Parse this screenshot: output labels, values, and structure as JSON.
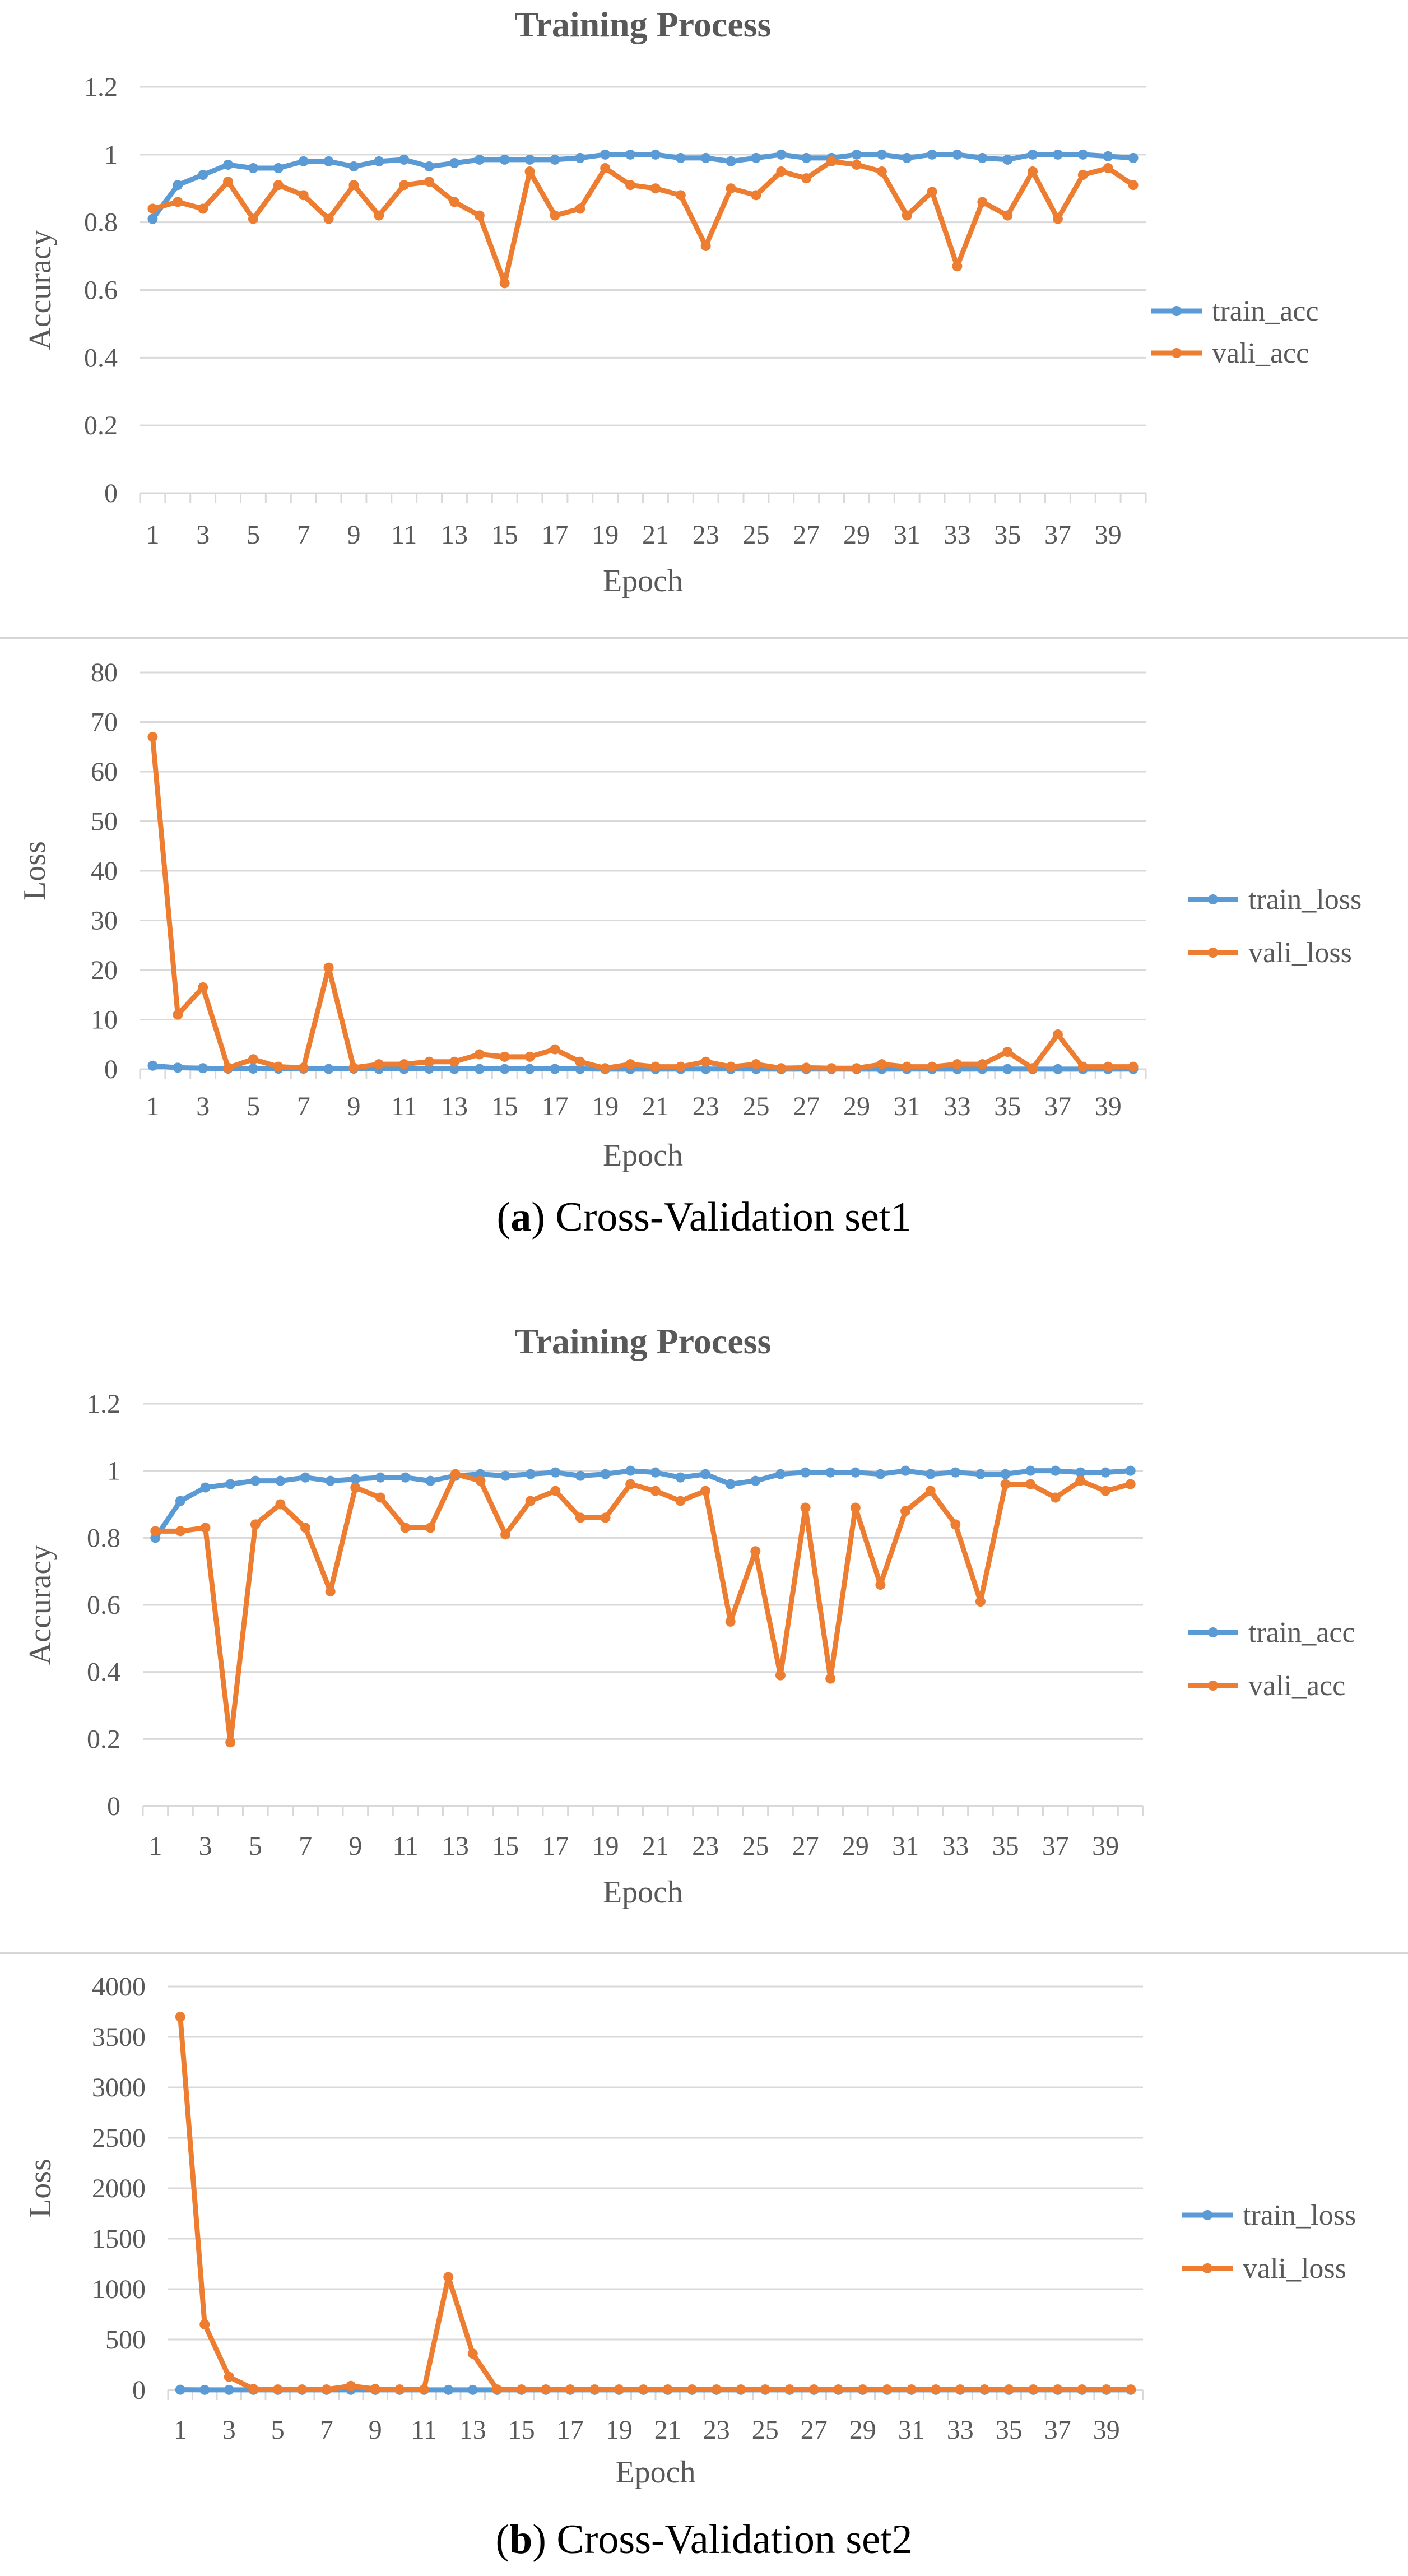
{
  "colors": {
    "train": "#5B9BD5",
    "vali": "#ED7D31",
    "grid": "#D9D9D9",
    "text": "#595959"
  },
  "captions": [
    {
      "letter": "a",
      "text": "Cross-Validation set1"
    },
    {
      "letter": "b",
      "text": "Cross-Validation set2"
    }
  ],
  "chart_data": [
    {
      "type": "line",
      "title": "Training Process",
      "xlabel": "Epoch",
      "ylabel": "Accuracy",
      "ylim": [
        0,
        1.2
      ],
      "yticks": [
        "0",
        "0.2",
        "0.4",
        "0.6",
        "0.8",
        "1",
        "1.2"
      ],
      "xtick_labels": [
        "1",
        "3",
        "5",
        "7",
        "9",
        "11",
        "13",
        "15",
        "17",
        "19",
        "21",
        "23",
        "25",
        "27",
        "29",
        "31",
        "33",
        "35",
        "37",
        "39"
      ],
      "x": [
        1,
        2,
        3,
        4,
        5,
        6,
        7,
        8,
        9,
        10,
        11,
        12,
        13,
        14,
        15,
        16,
        17,
        18,
        19,
        20,
        21,
        22,
        23,
        24,
        25,
        26,
        27,
        28,
        29,
        30,
        31,
        32,
        33,
        34,
        35,
        36,
        37,
        38,
        39,
        40
      ],
      "legend_position": "right",
      "series": [
        {
          "name": "train_acc",
          "values": [
            0.81,
            0.91,
            0.94,
            0.97,
            0.96,
            0.96,
            0.98,
            0.98,
            0.965,
            0.98,
            0.985,
            0.965,
            0.975,
            0.985,
            0.985,
            0.985,
            0.985,
            0.99,
            1.0,
            1.0,
            1.0,
            0.99,
            0.99,
            0.98,
            0.99,
            1.0,
            0.99,
            0.99,
            1.0,
            1.0,
            0.99,
            1.0,
            1.0,
            0.99,
            0.985,
            1.0,
            1.0,
            1.0,
            0.995,
            0.99
          ]
        },
        {
          "name": "vali_acc",
          "values": [
            0.84,
            0.86,
            0.84,
            0.92,
            0.81,
            0.91,
            0.88,
            0.81,
            0.91,
            0.82,
            0.91,
            0.92,
            0.86,
            0.82,
            0.62,
            0.95,
            0.82,
            0.84,
            0.96,
            0.91,
            0.9,
            0.88,
            0.73,
            0.9,
            0.88,
            0.95,
            0.93,
            0.98,
            0.97,
            0.95,
            0.82,
            0.89,
            0.67,
            0.86,
            0.82,
            0.95,
            0.81,
            0.94,
            0.96,
            0.91
          ]
        }
      ]
    },
    {
      "type": "line",
      "title": "",
      "xlabel": "Epoch",
      "ylabel": "Loss",
      "ylim": [
        0,
        80
      ],
      "yticks": [
        "0",
        "10",
        "20",
        "30",
        "40",
        "50",
        "60",
        "70",
        "80"
      ],
      "xtick_labels": [
        "1",
        "3",
        "5",
        "7",
        "9",
        "11",
        "13",
        "15",
        "17",
        "19",
        "21",
        "23",
        "25",
        "27",
        "29",
        "31",
        "33",
        "35",
        "37",
        "39"
      ],
      "x": [
        1,
        2,
        3,
        4,
        5,
        6,
        7,
        8,
        9,
        10,
        11,
        12,
        13,
        14,
        15,
        16,
        17,
        18,
        19,
        20,
        21,
        22,
        23,
        24,
        25,
        26,
        27,
        28,
        29,
        30,
        31,
        32,
        33,
        34,
        35,
        36,
        37,
        38,
        39,
        40
      ],
      "legend_position": "right",
      "series": [
        {
          "name": "train_loss",
          "values": [
            0.7,
            0.3,
            0.2,
            0.1,
            0.1,
            0.1,
            0.1,
            0.05,
            0.1,
            0.05,
            0.05,
            0.1,
            0.05,
            0.05,
            0.05,
            0.05,
            0.05,
            0.05,
            0.02,
            0.02,
            0.02,
            0.03,
            0.03,
            0.04,
            0.03,
            0.02,
            0.03,
            0.03,
            0.02,
            0.02,
            0.03,
            0.02,
            0.02,
            0.03,
            0.03,
            0.02,
            0.02,
            0.02,
            0.02,
            0.03
          ]
        },
        {
          "name": "vali_loss",
          "values": [
            67,
            11,
            16.5,
            0.3,
            2,
            0.5,
            0.3,
            20.5,
            0.3,
            1,
            1,
            1.5,
            1.5,
            3,
            2.5,
            2.5,
            4,
            1.5,
            0.2,
            1,
            0.5,
            0.5,
            1.5,
            0.5,
            1,
            0.2,
            0.3,
            0.2,
            0.2,
            1,
            0.5,
            0.5,
            1,
            1,
            3.5,
            0.2,
            7,
            0.5,
            0.5,
            0.5
          ]
        }
      ]
    },
    {
      "type": "line",
      "title": "Training Process",
      "xlabel": "Epoch",
      "ylabel": "Accuracy",
      "ylim": [
        0,
        1.2
      ],
      "yticks": [
        "0",
        "0.2",
        "0.4",
        "0.6",
        "0.8",
        "1",
        "1.2"
      ],
      "xtick_labels": [
        "1",
        "3",
        "5",
        "7",
        "9",
        "11",
        "13",
        "15",
        "17",
        "19",
        "21",
        "23",
        "25",
        "27",
        "29",
        "31",
        "33",
        "35",
        "37",
        "39"
      ],
      "x": [
        1,
        2,
        3,
        4,
        5,
        6,
        7,
        8,
        9,
        10,
        11,
        12,
        13,
        14,
        15,
        16,
        17,
        18,
        19,
        20,
        21,
        22,
        23,
        24,
        25,
        26,
        27,
        28,
        29,
        30,
        31,
        32,
        33,
        34,
        35,
        36,
        37,
        38,
        39,
        40
      ],
      "legend_position": "right",
      "series": [
        {
          "name": "train_acc",
          "values": [
            0.8,
            0.91,
            0.95,
            0.96,
            0.97,
            0.97,
            0.98,
            0.97,
            0.975,
            0.98,
            0.98,
            0.97,
            0.985,
            0.99,
            0.985,
            0.99,
            0.995,
            0.985,
            0.99,
            1.0,
            0.995,
            0.98,
            0.99,
            0.96,
            0.97,
            0.99,
            0.995,
            0.995,
            0.995,
            0.99,
            1.0,
            0.99,
            0.995,
            0.99,
            0.99,
            1.0,
            1.0,
            0.995,
            0.995,
            1.0
          ]
        },
        {
          "name": "vali_acc",
          "values": [
            0.82,
            0.82,
            0.83,
            0.19,
            0.84,
            0.9,
            0.83,
            0.64,
            0.95,
            0.92,
            0.83,
            0.83,
            0.99,
            0.97,
            0.81,
            0.91,
            0.94,
            0.86,
            0.86,
            0.96,
            0.94,
            0.91,
            0.94,
            0.55,
            0.76,
            0.39,
            0.89,
            0.38,
            0.89,
            0.66,
            0.88,
            0.94,
            0.84,
            0.61,
            0.96,
            0.96,
            0.92,
            0.97,
            0.94,
            0.96
          ]
        }
      ]
    },
    {
      "type": "line",
      "title": "",
      "xlabel": "Epoch",
      "ylabel": "Loss",
      "ylim": [
        0,
        4000
      ],
      "yticks": [
        "0",
        "500",
        "1000",
        "1500",
        "2000",
        "2500",
        "3000",
        "3500",
        "4000"
      ],
      "xtick_labels": [
        "1",
        "3",
        "5",
        "7",
        "9",
        "11",
        "13",
        "15",
        "17",
        "19",
        "21",
        "23",
        "25",
        "27",
        "29",
        "31",
        "33",
        "35",
        "37",
        "39"
      ],
      "x": [
        1,
        2,
        3,
        4,
        5,
        6,
        7,
        8,
        9,
        10,
        11,
        12,
        13,
        14,
        15,
        16,
        17,
        18,
        19,
        20,
        21,
        22,
        23,
        24,
        25,
        26,
        27,
        28,
        29,
        30,
        31,
        32,
        33,
        34,
        35,
        36,
        37,
        38,
        39,
        40
      ],
      "legend_position": "right",
      "series": [
        {
          "name": "train_loss",
          "values": [
            2,
            1,
            1,
            1,
            1,
            1,
            1,
            1,
            1,
            1,
            1,
            1,
            1,
            1,
            1,
            1,
            1,
            1,
            1,
            1,
            1,
            1,
            1,
            1,
            1,
            1,
            1,
            1,
            1,
            1,
            1,
            1,
            1,
            1,
            1,
            1,
            1,
            1,
            1,
            1
          ]
        },
        {
          "name": "vali_loss",
          "values": [
            3700,
            650,
            130,
            10,
            5,
            5,
            5,
            40,
            10,
            5,
            5,
            1120,
            360,
            5,
            5,
            5,
            5,
            5,
            5,
            5,
            5,
            5,
            5,
            5,
            5,
            5,
            5,
            5,
            5,
            5,
            5,
            5,
            5,
            5,
            5,
            5,
            5,
            5,
            5,
            5
          ]
        }
      ]
    }
  ]
}
